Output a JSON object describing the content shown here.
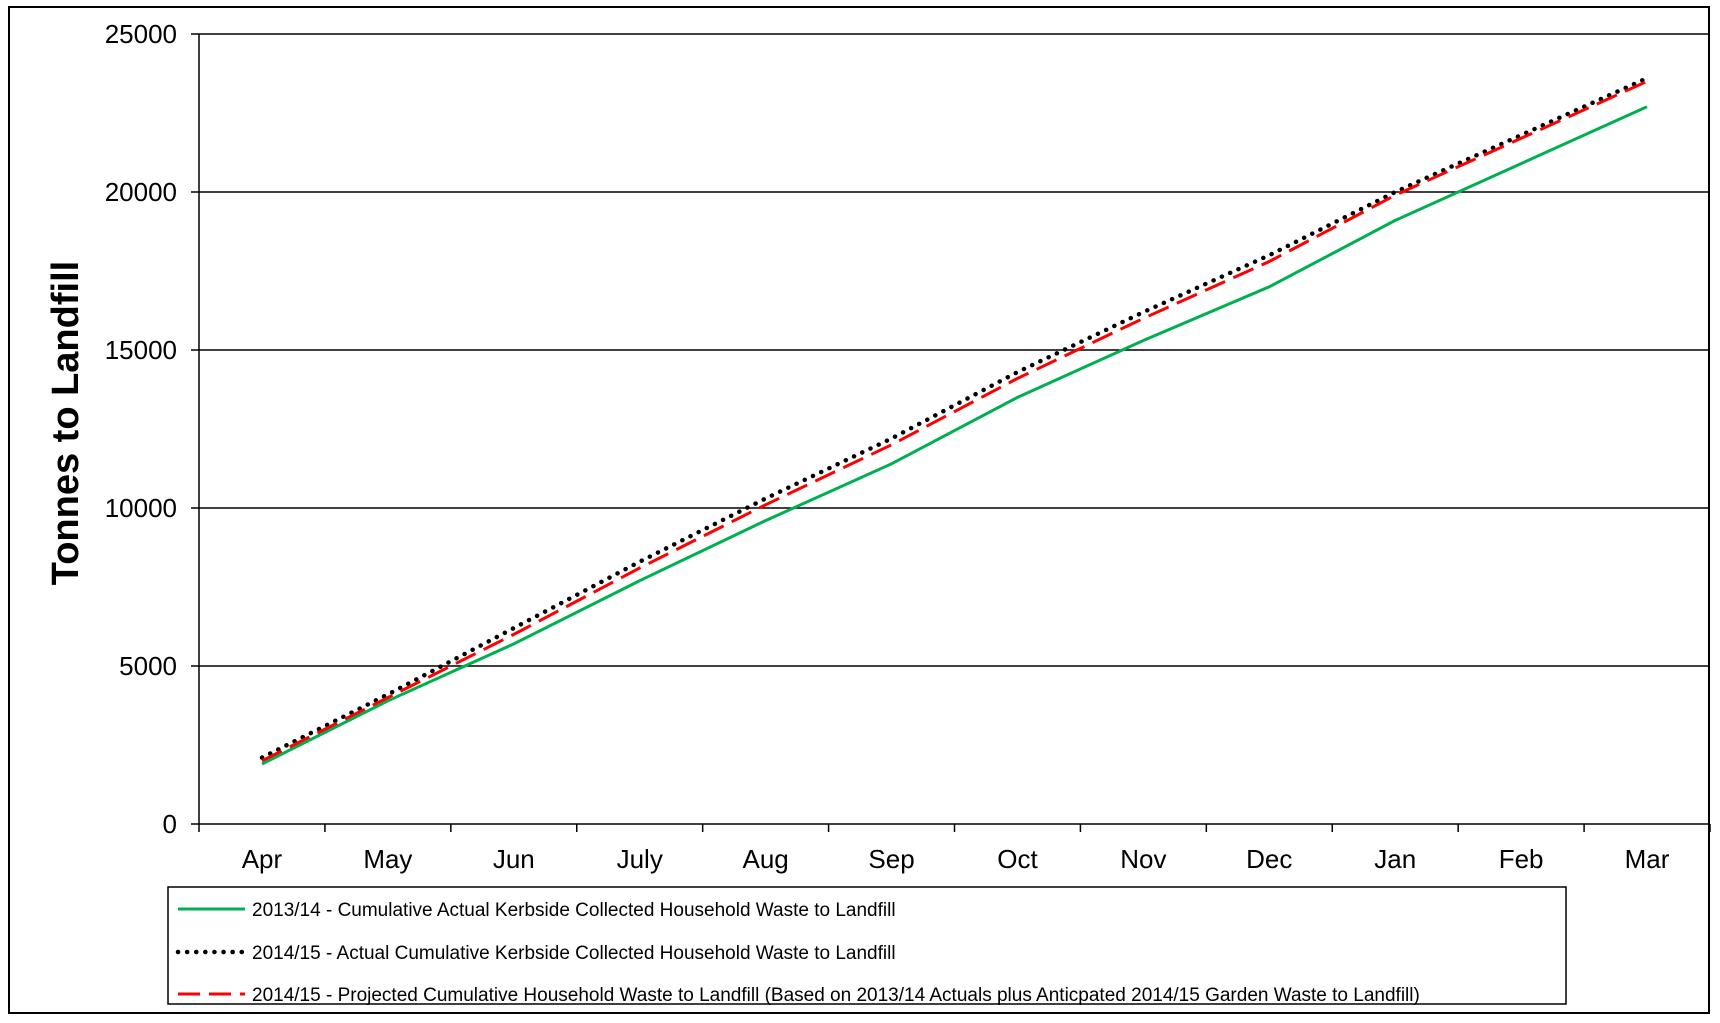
{
  "chart_data": {
    "type": "line",
    "title": "",
    "xlabel": "",
    "ylabel": "Tonnes to Landfill",
    "categories": [
      "Apr",
      "May",
      "Jun",
      "July",
      "Aug",
      "Sep",
      "Oct",
      "Nov",
      "Dec",
      "Jan",
      "Feb",
      "Mar"
    ],
    "yticks": [
      "0",
      "5000",
      "10000",
      "15000",
      "20000",
      "25000"
    ],
    "ylim": [
      0,
      25000
    ],
    "grid": true,
    "legend_position": "bottom",
    "series": [
      {
        "name": "2013/14 - Cumulative Actual Kerbside Collected Household Waste to Landfill",
        "style": "solid",
        "color": "#00b050",
        "values": [
          1900,
          3900,
          5700,
          7700,
          9600,
          11400,
          13500,
          15300,
          17000,
          19100,
          20900,
          22700
        ]
      },
      {
        "name": "2014/15 - Actual Cumulative Kerbside Collected Household Waste to Landfill",
        "style": "dotted",
        "color": "#000000",
        "values": [
          2100,
          4100,
          6200,
          8300,
          10300,
          12200,
          14300,
          16200,
          18000,
          20000,
          21800,
          23600
        ]
      },
      {
        "name": "2014/15 - Projected Cumulative Household Waste to Landfill (Based on 2013/14 Actuals plus Anticpated 2014/15 Garden Waste to Landfill)",
        "style": "dashed",
        "color": "#ff0000",
        "values": [
          2000,
          4000,
          6000,
          8100,
          10100,
          12000,
          14100,
          16000,
          17800,
          19900,
          21700,
          23500
        ]
      }
    ]
  }
}
